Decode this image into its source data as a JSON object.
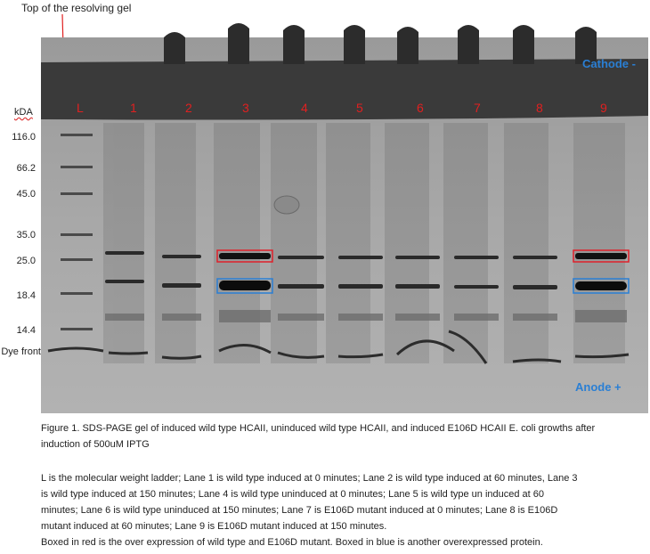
{
  "top_label": "Top of the resolving gel",
  "kda_label": "kDA",
  "markers": [
    {
      "label": "116.0"
    },
    {
      "label": "66.2"
    },
    {
      "label": "45.0"
    },
    {
      "label": "35.0"
    },
    {
      "label": "25.0"
    },
    {
      "label": "18.4"
    },
    {
      "label": "14.4"
    },
    {
      "label": "Dye front"
    }
  ],
  "lanes": [
    "L",
    "1",
    "2",
    "3",
    "4",
    "5",
    "6",
    "7",
    "8",
    "9"
  ],
  "cathode_label": "Cathode -",
  "anode_label": "Anode +",
  "box_colors": {
    "red": "#e0202a",
    "blue": "#2a7fd4"
  },
  "caption": {
    "line1": "Figure 1. SDS-PAGE gel of induced wild type HCAII, uninduced wild type HCAII, and induced E106D HCAII E. coli growths after",
    "line2": "induction of 500uM IPTG"
  },
  "legend": {
    "line1": "L is the molecular weight ladder; Lane 1 is wild type induced at 0 minutes; Lane 2 is wild type induced at 60 minutes, Lane 3",
    "line2": "is wild type induced at 150 minutes; Lane 4 is wild type uninduced at 0 minutes; Lane 5 is wild type un induced at 60",
    "line3": "minutes;  Lane 6 is wild type uninduced at 150 minutes; Lane 7 is E106D mutant induced at 0 minutes; Lane 8 is E106D",
    "line4": "mutant induced at 60 minutes; Lane 9 is E106D mutant induced at 150 minutes.",
    "line5": "Boxed in red is the over expression of wild type and E106D mutant. Boxed in blue is another overexpressed protein."
  }
}
